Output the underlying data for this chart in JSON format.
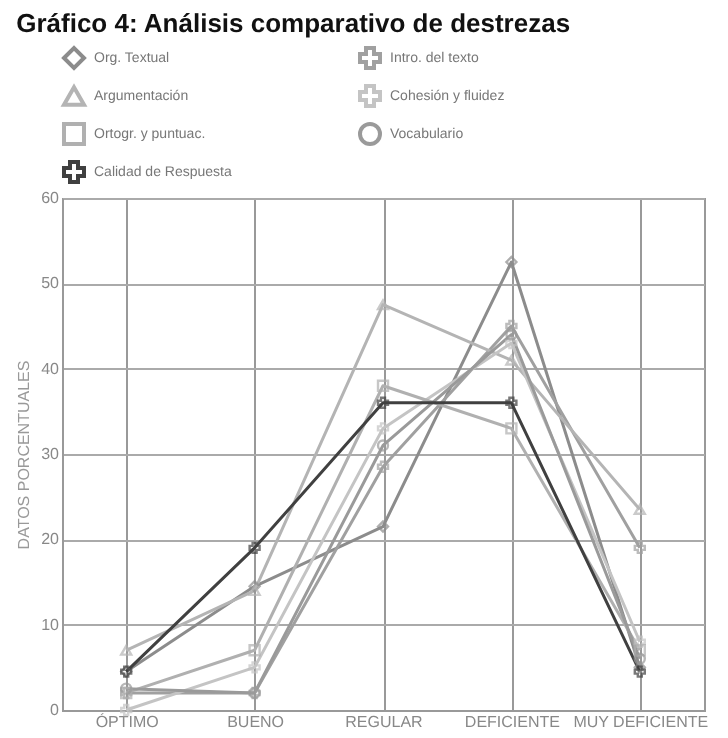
{
  "chart_data": {
    "type": "line",
    "title": "Gráfico 4: Análisis comparativo de destrezas",
    "ylabel": "DATOS PORCENTUALES",
    "categories": [
      "ÓPTIMO",
      "BUENO",
      "REGULAR",
      "DEFICIENTE",
      "MUY DEFICIENTE"
    ],
    "series": [
      {
        "name": "Org. Textual",
        "color": "#8c8c8c",
        "marker": "diamond",
        "values": [
          4.5,
          14.5,
          21.5,
          52.5,
          5
        ]
      },
      {
        "name": "Intro. del texto",
        "color": "#a0a0a0",
        "marker": "cross",
        "values": [
          2,
          2,
          28.5,
          45,
          19
        ]
      },
      {
        "name": "Argumentación",
        "color": "#b4b4b4",
        "marker": "triangle",
        "values": [
          7,
          14,
          47.5,
          41,
          23.5
        ]
      },
      {
        "name": "Cohesión y fluidez",
        "color": "#c4c4c4",
        "marker": "cross",
        "values": [
          0,
          5,
          33,
          43,
          8
        ]
      },
      {
        "name": "Ortogr. y puntuac.",
        "color": "#b0b0b0",
        "marker": "square",
        "values": [
          2,
          7,
          38,
          33,
          7
        ]
      },
      {
        "name": "Vocabulario",
        "color": "#9a9a9a",
        "marker": "circle",
        "values": [
          2.5,
          2,
          31,
          44,
          6
        ]
      },
      {
        "name": "Calidad de Respuesta",
        "color": "#404040",
        "marker": "cross",
        "values": [
          4.5,
          19,
          36,
          36,
          4.5
        ]
      }
    ],
    "ylim": [
      0,
      60
    ],
    "yticks": [
      0,
      10,
      20,
      30,
      40,
      50,
      60
    ],
    "grid": true,
    "legend": "top",
    "line_style": "solid"
  }
}
